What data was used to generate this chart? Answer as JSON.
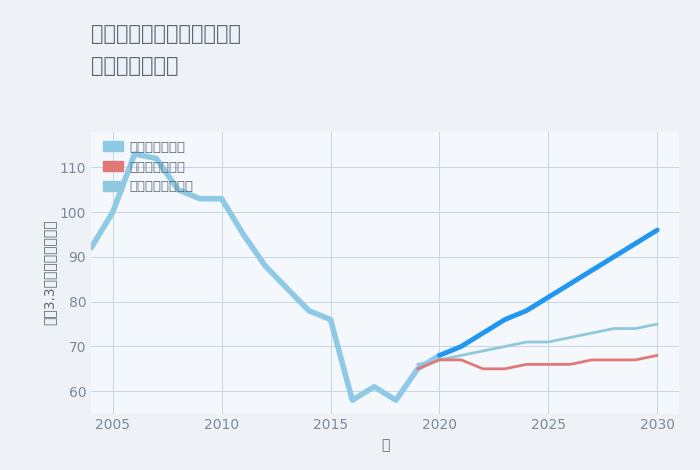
{
  "title_line1": "神奈川県伊勢原市小稲葉の",
  "title_line2": "土地の価格推移",
  "xlabel": "年",
  "ylabel": "坪（3.3㎡）単価（万円）",
  "background_color": "#eef2f7",
  "plot_background_color": "#f4f7fb",
  "grid_color": "#c5d5e5",
  "ylim": [
    55,
    118
  ],
  "yticks": [
    60,
    70,
    80,
    90,
    100,
    110
  ],
  "xlim": [
    2004,
    2031
  ],
  "xticks": [
    2005,
    2010,
    2015,
    2020,
    2025,
    2030
  ],
  "good_scenario_hist": {
    "label": "グッドシナリオ",
    "color": "#8ecae6",
    "linewidth": 4.0,
    "years": [
      2004,
      2005,
      2006,
      2007,
      2008,
      2009,
      2010,
      2011,
      2012,
      2013,
      2014,
      2015,
      2016,
      2017,
      2018,
      2019,
      2020
    ],
    "values": [
      92,
      100,
      113,
      112,
      105,
      103,
      103,
      95,
      88,
      83,
      78,
      76,
      58,
      61,
      58,
      65,
      68
    ]
  },
  "good_scenario_fut": {
    "color": "#2196f3",
    "linewidth": 3.5,
    "years": [
      2020,
      2021,
      2022,
      2023,
      2024,
      2025,
      2026,
      2027,
      2028,
      2029,
      2030
    ],
    "values": [
      68,
      70,
      73,
      76,
      78,
      81,
      84,
      87,
      90,
      93,
      96
    ]
  },
  "bad_scenario": {
    "label": "バッドシナリオ",
    "color": "#e07878",
    "linewidth": 2.0,
    "years": [
      2019,
      2020,
      2021,
      2022,
      2023,
      2024,
      2025,
      2026,
      2027,
      2028,
      2029,
      2030
    ],
    "values": [
      65,
      67,
      67,
      65,
      65,
      66,
      66,
      66,
      67,
      67,
      67,
      68
    ]
  },
  "normal_scenario": {
    "label": "ノーマルシナリオ",
    "color": "#90c8e0",
    "linewidth": 2.0,
    "years": [
      2019,
      2020,
      2021,
      2022,
      2023,
      2024,
      2025,
      2026,
      2027,
      2028,
      2029,
      2030
    ],
    "values": [
      66,
      67,
      68,
      69,
      70,
      71,
      71,
      72,
      73,
      74,
      74,
      75
    ]
  },
  "title_color": "#5a6a7a",
  "tick_color": "#7a8a9a",
  "label_color": "#5a6a7a",
  "legend_color": "#5a6a7a",
  "title_fontsize": 15,
  "label_fontsize": 10,
  "tick_fontsize": 10,
  "legend_fontsize": 9.5
}
